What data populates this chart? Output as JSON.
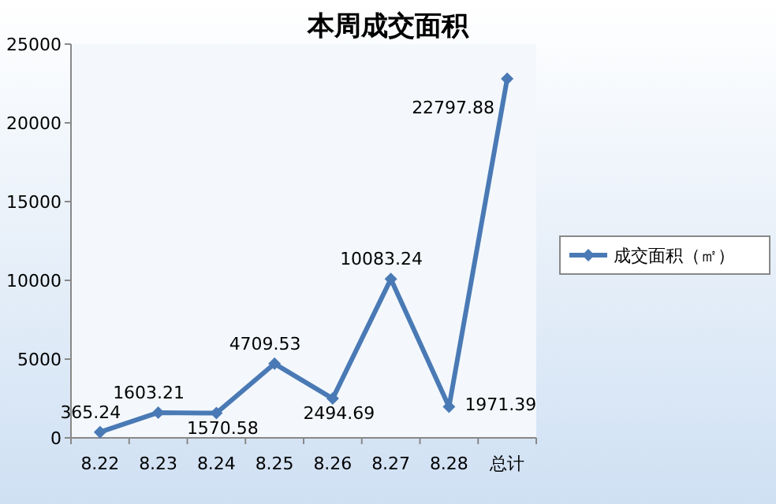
{
  "chart_data": {
    "type": "line",
    "title": "本周成交面积",
    "categories": [
      "8.22",
      "8.23",
      "8.24",
      "8.25",
      "8.26",
      "8.27",
      "8.28",
      "总计"
    ],
    "series": [
      {
        "name": "成交面积（㎡）",
        "color": "#4a7ab5",
        "values": [
          365.24,
          1603.21,
          1570.58,
          4709.53,
          2494.69,
          10083.24,
          1971.39,
          22797.88
        ]
      }
    ],
    "ylim": [
      0,
      25000
    ],
    "yticks": [
      0,
      5000,
      10000,
      15000,
      20000,
      25000
    ],
    "marker": "diamond",
    "legend": "right",
    "data_labels": true
  }
}
